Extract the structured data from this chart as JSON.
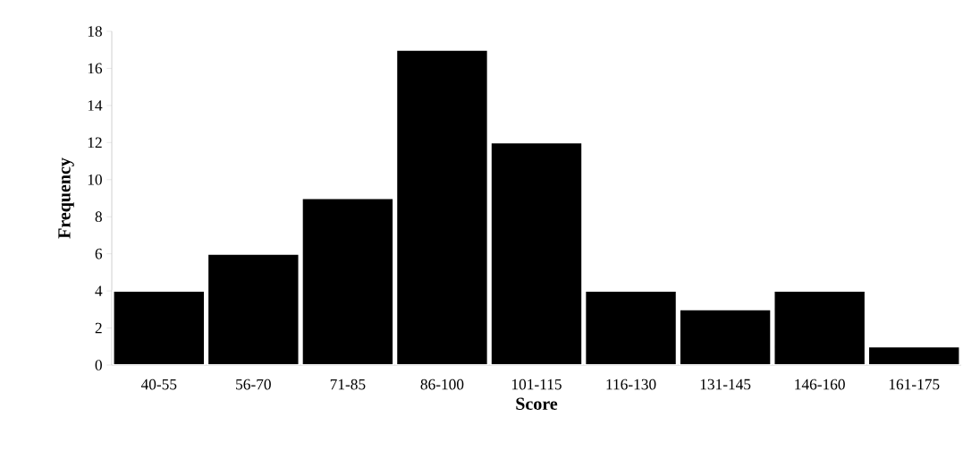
{
  "chart_data": {
    "type": "bar",
    "xlabel": "Score",
    "ylabel": "Frequency",
    "categories": [
      "40-55",
      "56-70",
      "71-85",
      "86-100",
      "101-115",
      "116-130",
      "131-145",
      "146-160",
      "161-175"
    ],
    "values": [
      4,
      6,
      9,
      17,
      12,
      4,
      3,
      4,
      1
    ],
    "color": "#000000",
    "ylim": [
      0,
      18
    ],
    "yticks": [
      0,
      2,
      4,
      6,
      8,
      10,
      12,
      14,
      16,
      18
    ]
  }
}
